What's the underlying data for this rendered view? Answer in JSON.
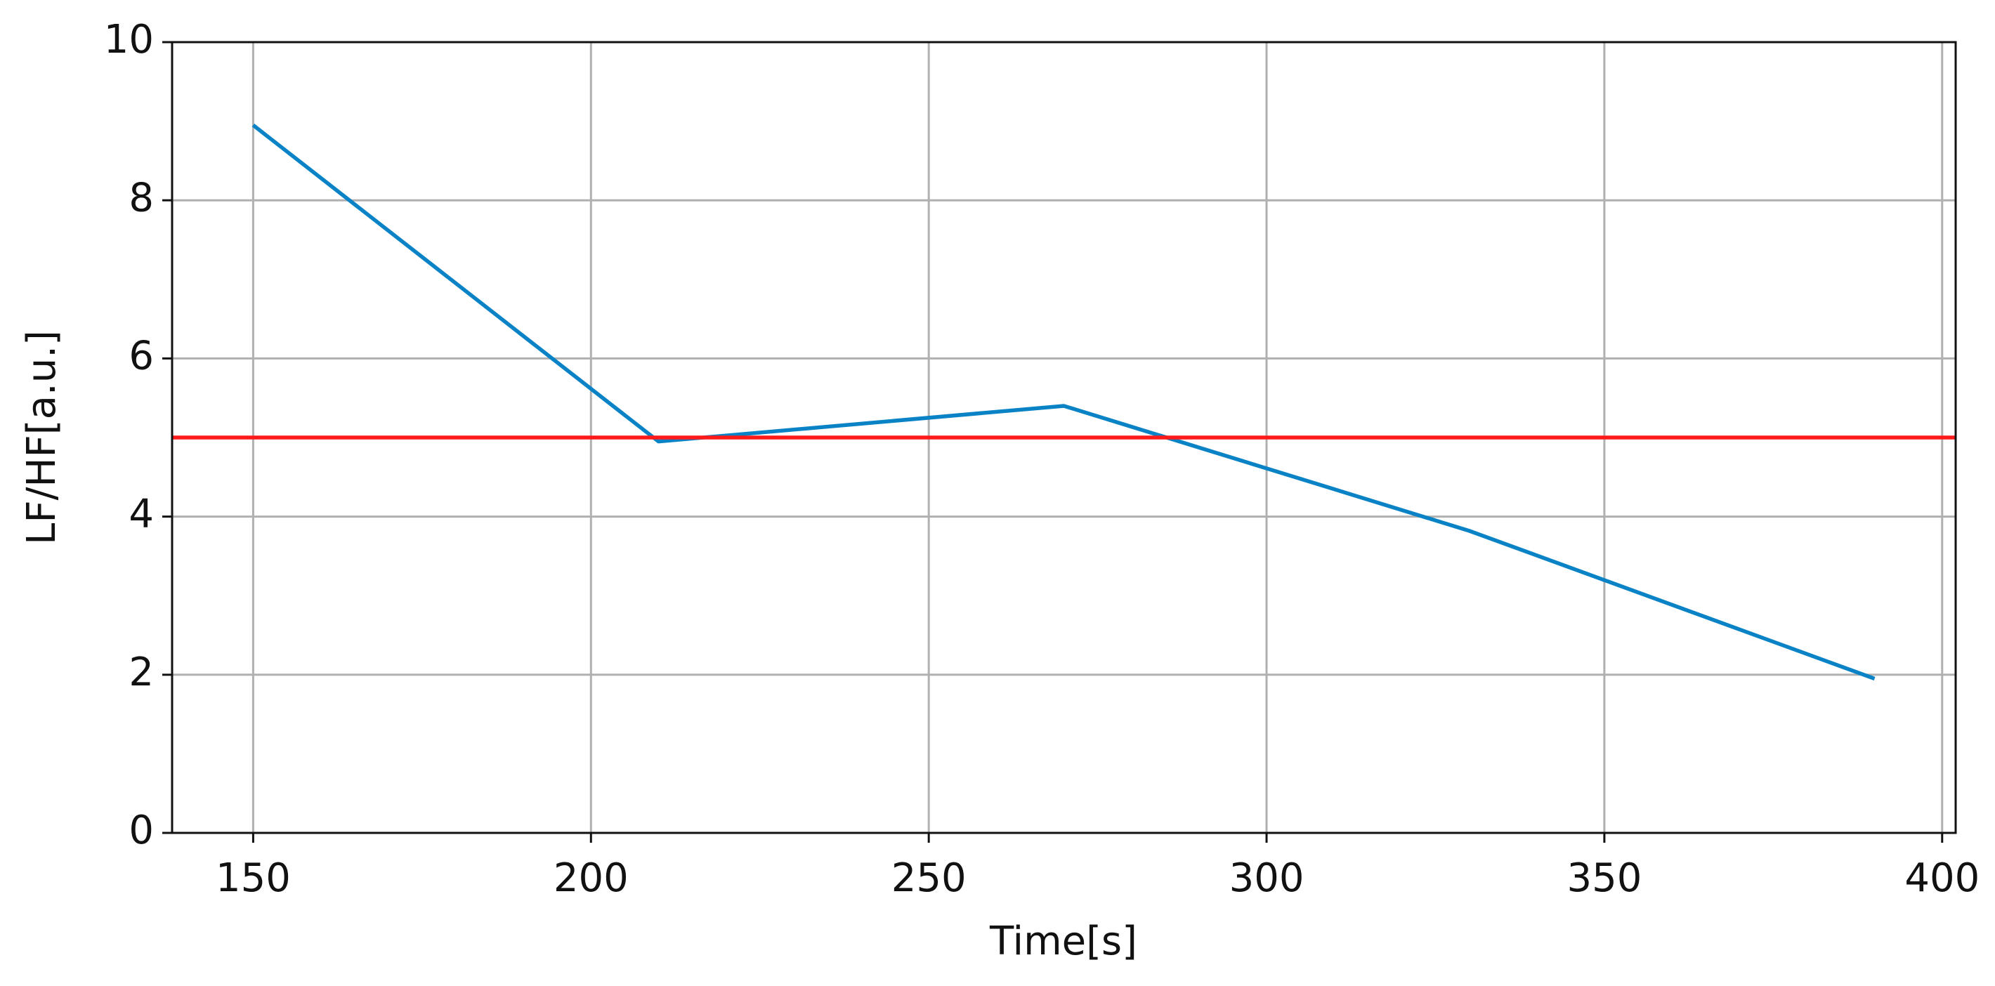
{
  "chart_data": {
    "type": "line",
    "x_label": "Time[s]",
    "y_label": "LF/HF[a.u.]",
    "x": [
      150,
      210,
      270,
      330,
      390
    ],
    "series": [
      {
        "color": "#0a83c6",
        "values": [
          8.95,
          4.95,
          5.4,
          3.82,
          1.95
        ]
      }
    ],
    "hlines": [
      {
        "value": 5,
        "color": "#ff1a1a"
      }
    ],
    "xlim": [
      138,
      402
    ],
    "xticks": [
      150,
      200,
      250,
      300,
      350,
      400
    ],
    "ylim": [
      0,
      10
    ],
    "yticks": [
      0,
      2,
      4,
      6,
      8,
      10
    ],
    "grid": true
  }
}
